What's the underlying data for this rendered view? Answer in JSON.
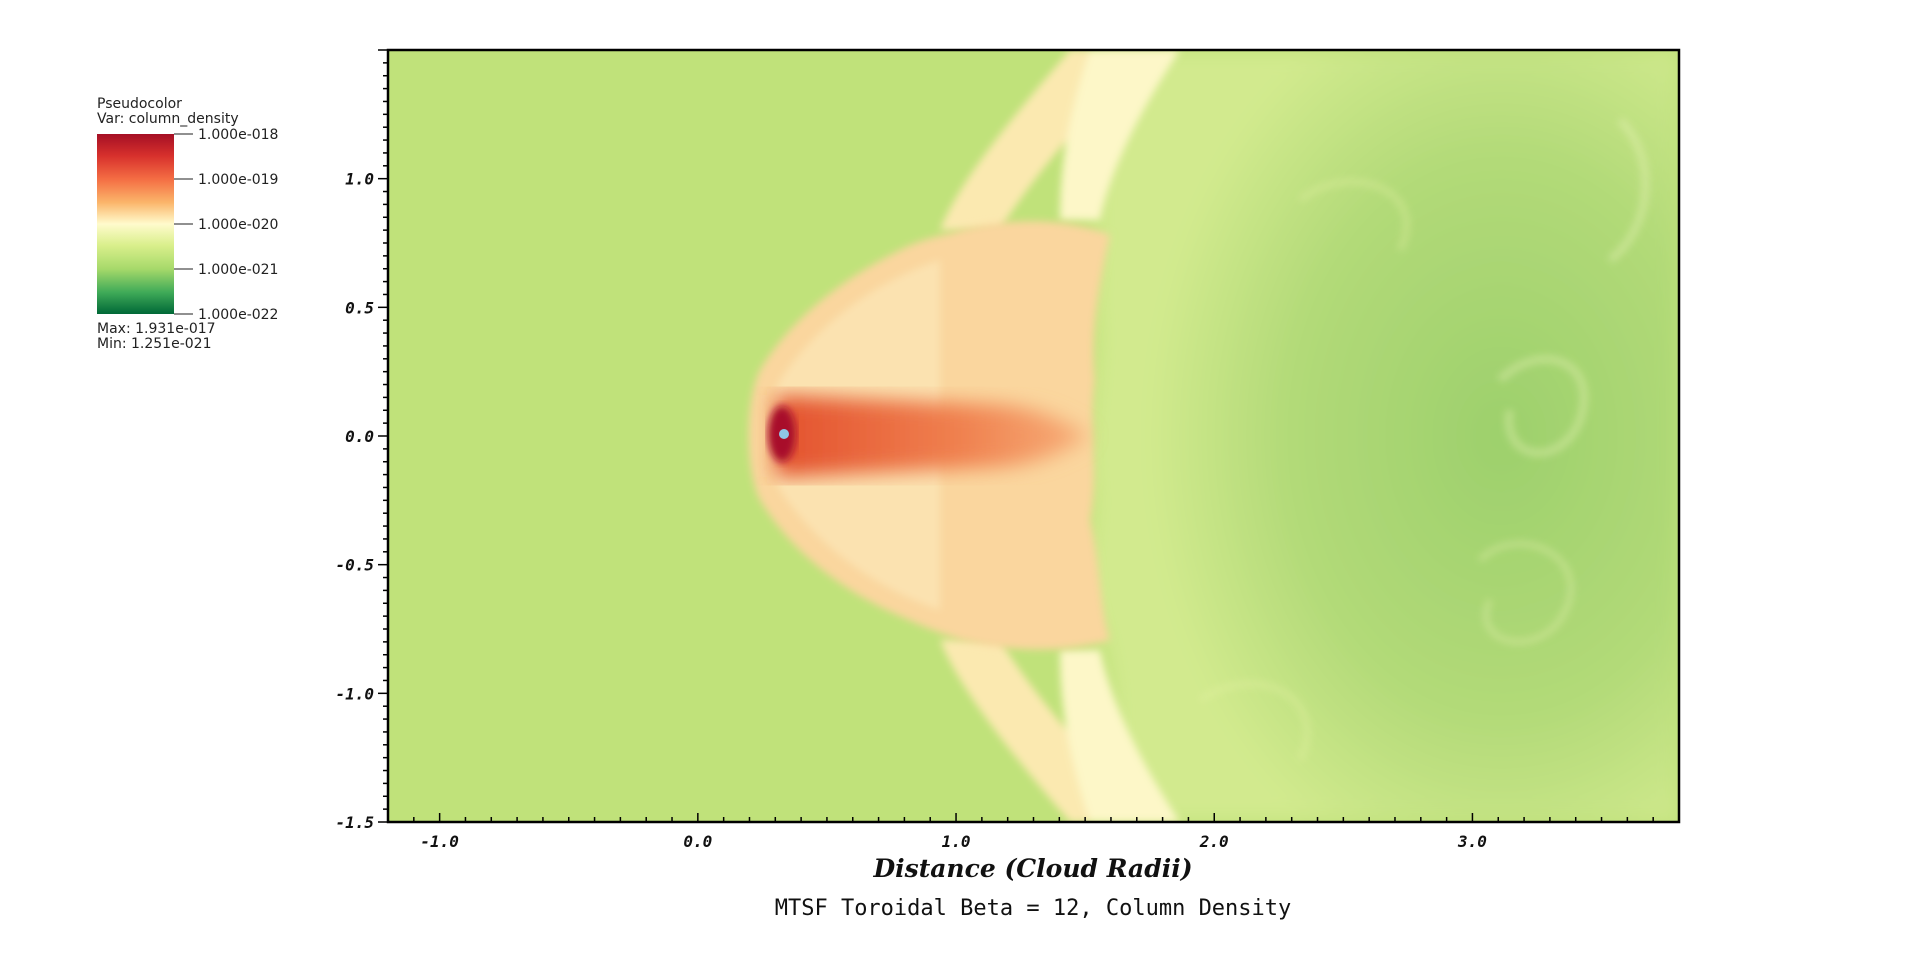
{
  "chart_data": {
    "type": "heatmap",
    "title": "MTSF Toroidal Beta = 12, Column Density",
    "xlabel": "Distance (Cloud Radii)",
    "ylabel": "",
    "xlim": [
      -1.2,
      3.8
    ],
    "ylim": [
      -1.5,
      1.5
    ],
    "x_ticks": [
      "-1.0",
      "0.0",
      "1.0",
      "2.0",
      "3.0"
    ],
    "x_tick_values": [
      -1.0,
      0.0,
      1.0,
      2.0,
      3.0
    ],
    "y_ticks": [
      "-1.5",
      "-1.0",
      "-0.5",
      "0.0",
      "0.5",
      "1.0"
    ],
    "y_tick_values": [
      -1.5,
      -1.0,
      -0.5,
      0.0,
      0.5,
      1.0
    ],
    "legend": {
      "plot_type": "Pseudocolor",
      "variable": "Var: column_density",
      "levels": [
        "1.000e-018",
        "1.000e-019",
        "1.000e-020",
        "1.000e-021",
        "1.000e-022"
      ],
      "max": "Max:  1.931e-017",
      "min": "Min:  1.251e-021",
      "colors": [
        "#b0102a",
        "#e34a33",
        "#f6a964",
        "#fdeeb0",
        "#fefcd8",
        "#d4ec8a",
        "#8dcc6a",
        "#1f9a50",
        "#006837"
      ]
    },
    "background_color": "#c0e27a",
    "grid": false
  }
}
